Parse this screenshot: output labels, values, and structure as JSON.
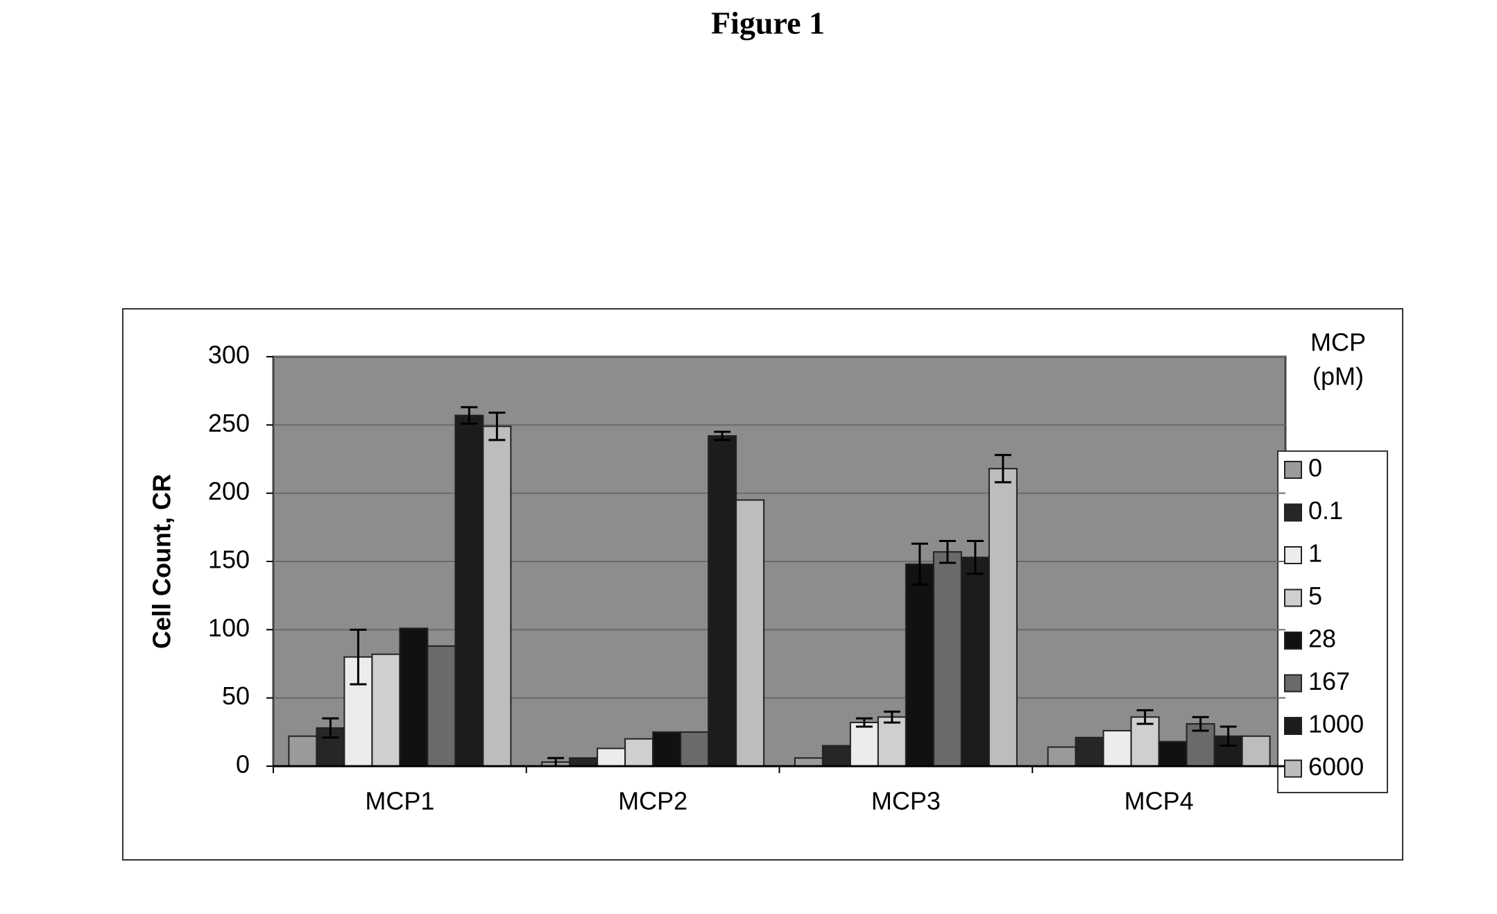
{
  "chart_data": {
    "type": "bar",
    "title": "Figure 1",
    "y_label": "Cell Count, CR",
    "legend_title_lines": [
      "MCP",
      "(pM)"
    ],
    "categories": [
      "MCP1",
      "MCP2",
      "MCP3",
      "MCP4"
    ],
    "series": [
      {
        "name": "0",
        "color": "#9a9a9a",
        "values": [
          22,
          3,
          6,
          14
        ],
        "errors": [
          null,
          3,
          null,
          null
        ]
      },
      {
        "name": "0.1",
        "color": "#262626",
        "values": [
          28,
          6,
          15,
          21
        ],
        "errors": [
          7,
          null,
          null,
          null
        ]
      },
      {
        "name": "1",
        "color": "#ececec",
        "values": [
          80,
          13,
          32,
          26
        ],
        "errors": [
          20,
          null,
          3,
          null
        ]
      },
      {
        "name": "5",
        "color": "#cfcfcf",
        "values": [
          82,
          20,
          36,
          36
        ],
        "errors": [
          null,
          null,
          4,
          5
        ]
      },
      {
        "name": "28",
        "color": "#111111",
        "values": [
          101,
          25,
          148,
          18
        ],
        "errors": [
          null,
          null,
          15,
          null
        ]
      },
      {
        "name": "167",
        "color": "#6a6a6a",
        "values": [
          88,
          25,
          157,
          31
        ],
        "errors": [
          null,
          null,
          8,
          5
        ]
      },
      {
        "name": "1000",
        "color": "#1c1c1c",
        "values": [
          257,
          242,
          153,
          22
        ],
        "errors": [
          6,
          3,
          12,
          7
        ]
      },
      {
        "name": "6000",
        "color": "#bdbdbd",
        "values": [
          249,
          195,
          218,
          22
        ],
        "errors": [
          10,
          null,
          10,
          null
        ]
      }
    ],
    "ylim": [
      0,
      300
    ],
    "yticks": [
      0,
      50,
      100,
      150,
      200,
      250,
      300
    ],
    "grid": true,
    "legend": "right"
  }
}
